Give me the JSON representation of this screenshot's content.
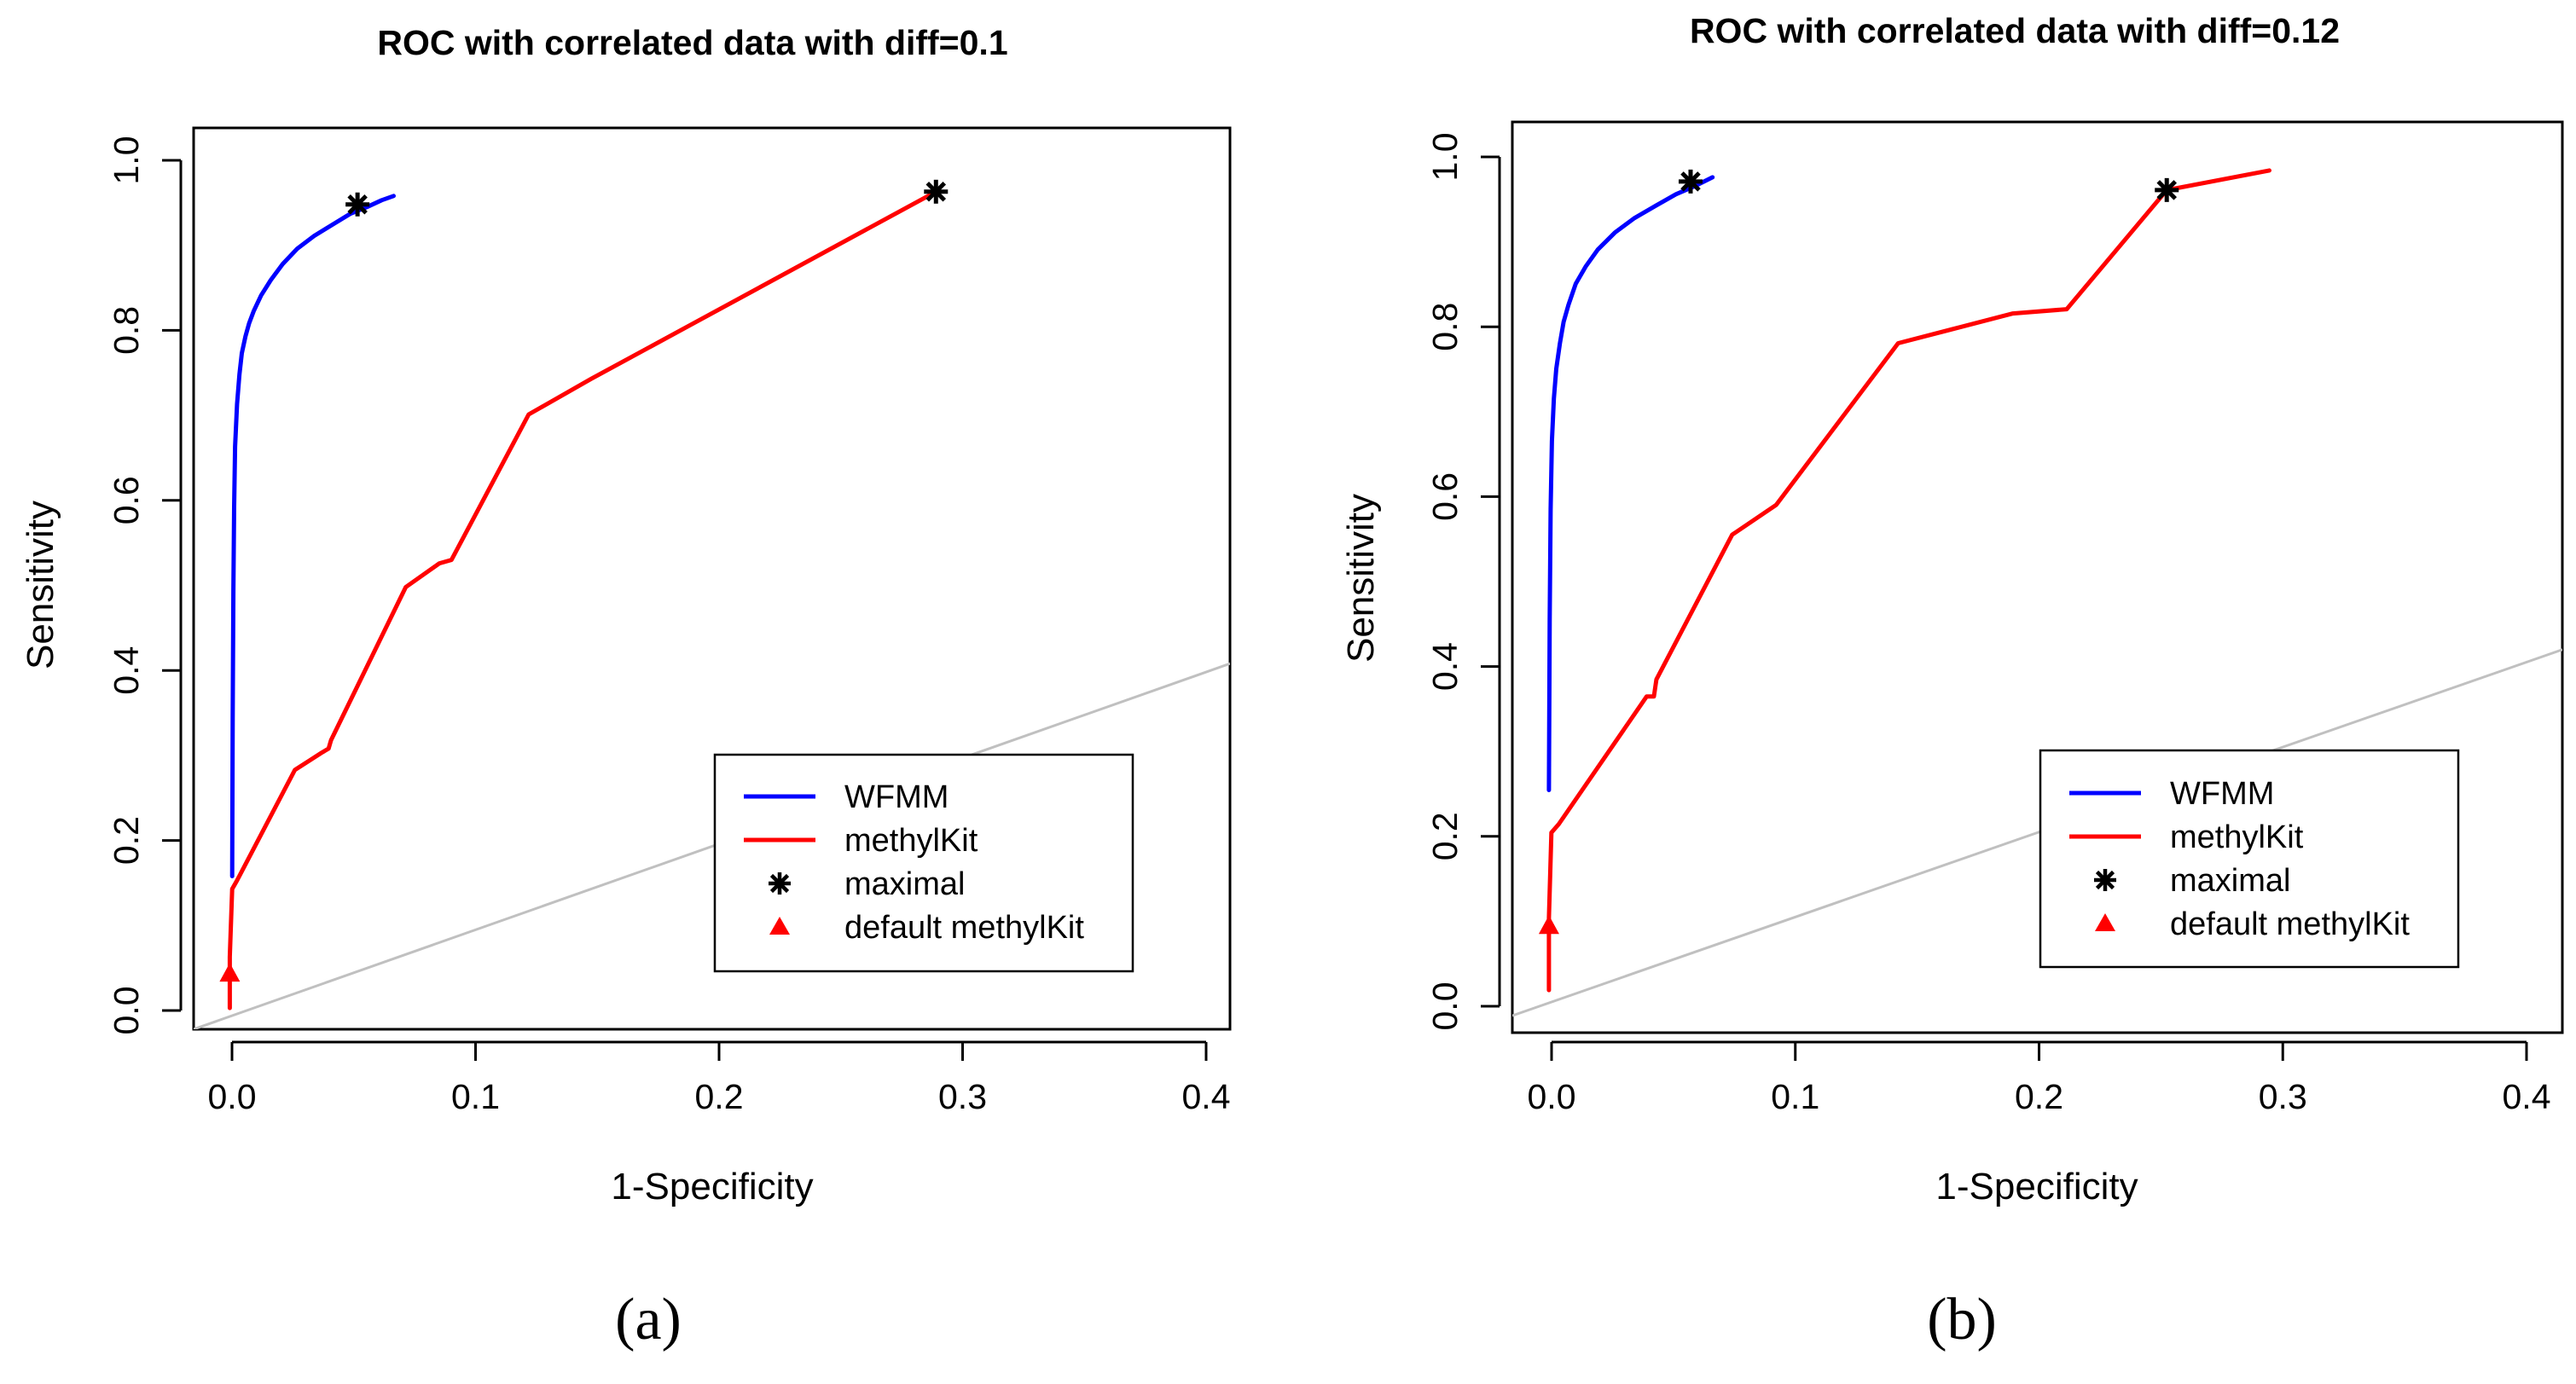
{
  "chart_data": [
    {
      "type": "line",
      "title": "ROC with correlated data with diff=0.1",
      "xlabel": "1-Specificity",
      "ylabel": "Sensitivity",
      "xlim": [
        -0.015,
        0.415
      ],
      "ylim": [
        -0.015,
        1.045
      ],
      "xticks": [
        "0.0",
        "0.1",
        "0.2",
        "0.3",
        "0.4"
      ],
      "yticks": [
        "0.0",
        "0.2",
        "0.4",
        "0.6",
        "0.8",
        "1.0"
      ],
      "caption": "(a)",
      "series": [
        {
          "name": "WFMM",
          "color": "#0000ff",
          "x": [
            0.001,
            0.0012,
            0.0015,
            0.0018,
            0.0022,
            0.003,
            0.004,
            0.005,
            0.0065,
            0.008,
            0.01,
            0.013,
            0.017,
            0.022,
            0.028,
            0.035,
            0.043,
            0.05,
            0.057,
            0.063,
            0.068
          ],
          "y": [
            0.165,
            0.35,
            0.5,
            0.6,
            0.67,
            0.72,
            0.755,
            0.78,
            0.8,
            0.815,
            0.83,
            0.848,
            0.866,
            0.885,
            0.903,
            0.918,
            0.932,
            0.944,
            0.952,
            0.96,
            0.965
          ]
        },
        {
          "name": "methylKit",
          "color": "#ff0000",
          "x": [
            0.0,
            0.0,
            0.001,
            0.003,
            0.027,
            0.038,
            0.041,
            0.042,
            0.073,
            0.087,
            0.092,
            0.124,
            0.15,
            0.293
          ],
          "y": [
            0.01,
            0.07,
            0.15,
            0.16,
            0.29,
            0.31,
            0.315,
            0.325,
            0.505,
            0.533,
            0.537,
            0.708,
            0.75,
            0.97
          ]
        }
      ],
      "maximal": [
        {
          "x": 0.053,
          "y": 0.955
        },
        {
          "x": 0.293,
          "y": 0.97
        }
      ],
      "default_methylkit": {
        "x": 0.0,
        "y": 0.05
      },
      "reference_line": {
        "x": [
          -0.015,
          0.415
        ],
        "y": [
          -0.015,
          0.415
        ],
        "color": "#c0c0c0"
      },
      "legend": {
        "position": "bottom-right",
        "entries": [
          "WFMM",
          "methylKit",
          "maximal",
          "default methylKit"
        ]
      }
    },
    {
      "type": "line",
      "title": "ROC with correlated data with diff=0.12",
      "xlabel": "1-Specificity",
      "ylabel": "Sensitivity",
      "xlim": [
        -0.015,
        0.415
      ],
      "ylim": [
        -0.035,
        1.035
      ],
      "xticks": [
        "0.0",
        "0.1",
        "0.2",
        "0.3",
        "0.4"
      ],
      "yticks": [
        "0.0",
        "0.2",
        "0.4",
        "0.6",
        "0.8",
        "1.0"
      ],
      "caption": "(b)",
      "series": [
        {
          "name": "WFMM",
          "color": "#0000ff",
          "x": [
            0.0,
            0.0003,
            0.0007,
            0.0012,
            0.002,
            0.003,
            0.0045,
            0.006,
            0.008,
            0.011,
            0.015,
            0.02,
            0.027,
            0.035,
            0.044,
            0.052,
            0.06,
            0.067
          ],
          "y": [
            0.25,
            0.45,
            0.58,
            0.66,
            0.71,
            0.745,
            0.775,
            0.8,
            0.82,
            0.845,
            0.865,
            0.885,
            0.905,
            0.922,
            0.937,
            0.95,
            0.96,
            0.97
          ]
        },
        {
          "name": "methylKit",
          "color": "#ff0000",
          "x": [
            0.0,
            0.0,
            0.001,
            0.004,
            0.04,
            0.043,
            0.044,
            0.075,
            0.093,
            0.143,
            0.19,
            0.212,
            0.253,
            0.295
          ],
          "y": [
            0.015,
            0.1,
            0.2,
            0.21,
            0.36,
            0.36,
            0.38,
            0.55,
            0.585,
            0.775,
            0.81,
            0.815,
            0.955,
            0.978
          ]
        }
      ],
      "maximal": [
        {
          "x": 0.058,
          "y": 0.965
        },
        {
          "x": 0.253,
          "y": 0.955
        }
      ],
      "default_methylkit": {
        "x": 0.0,
        "y": 0.09
      },
      "reference_line": {
        "x": [
          -0.015,
          0.415
        ],
        "y": [
          -0.015,
          0.415
        ],
        "color": "#c0c0c0"
      },
      "legend": {
        "position": "bottom-right",
        "entries": [
          "WFMM",
          "methylKit",
          "maximal",
          "default methylKit"
        ]
      }
    }
  ],
  "legend_colors": {
    "wfmm": "#0000ff",
    "methylkit": "#ff0000",
    "maximal": "#000000",
    "default_methylkit": "#ff0000"
  }
}
